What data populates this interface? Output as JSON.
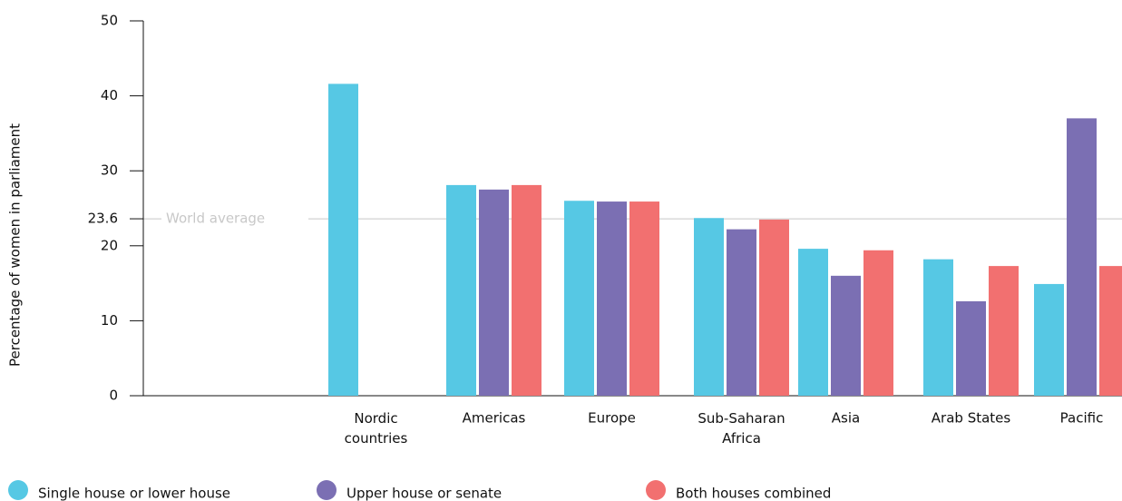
{
  "chart_data": {
    "type": "bar",
    "y_label": "Percentage of women in parliament",
    "categories": [
      "Nordic countries",
      "Americas",
      "Europe",
      "Sub-Saharan Africa",
      "Asia",
      "Arab States",
      "Pacific"
    ],
    "series": [
      {
        "name": "Single house or lower house",
        "color": "#56c8e4",
        "values": [
          41.6,
          28.1,
          26.0,
          23.7,
          19.6,
          18.2,
          14.9
        ]
      },
      {
        "name": "Upper house or senate",
        "color": "#7b6fb3",
        "values": [
          null,
          27.5,
          25.9,
          22.2,
          16.0,
          12.6,
          37.0
        ]
      },
      {
        "name": "Both houses combined",
        "color": "#f27070",
        "values": [
          null,
          28.1,
          25.9,
          23.5,
          19.4,
          17.3,
          17.3
        ]
      }
    ],
    "ylim": [
      0,
      50
    ],
    "yticks": [
      0,
      10,
      20,
      23.6,
      30,
      40,
      50
    ],
    "reference_line": {
      "value": 23.6,
      "label": "World average",
      "color": "#c8c8c8"
    }
  }
}
